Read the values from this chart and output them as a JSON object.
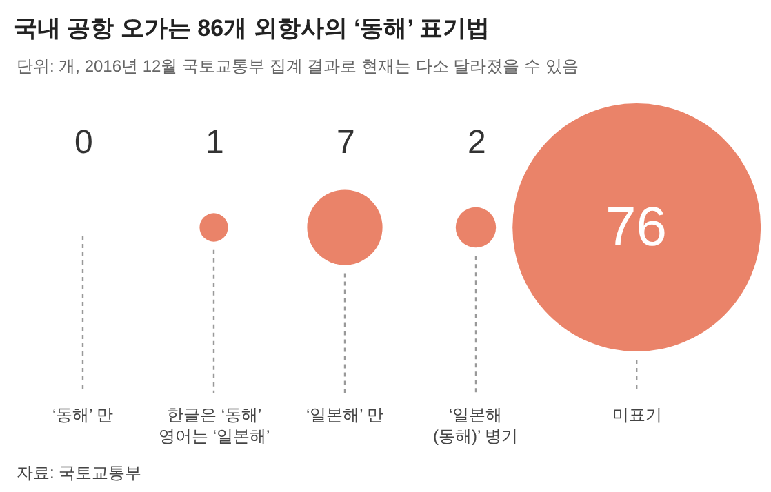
{
  "chart_data": {
    "type": "other",
    "title": "국내 공항 오가는 86개 외항사의 ‘동해’ 표기법",
    "subtitle": "단위: 개, 2016년 12월 국토교통부 집계 결과로 현재는 다소 달라졌을 수 있음",
    "categories": [
      "‘동해’ 만",
      "한글은 ‘동해’\n영어는 ‘일본해’",
      "‘일본해’ 만",
      "‘일본해\n(동해)’ 병기",
      "미표기"
    ],
    "values": [
      0,
      1,
      7,
      2,
      76
    ],
    "color": "#ea8369",
    "data_labels": true,
    "annotations": [
      "자료: 국토교통부"
    ]
  }
}
